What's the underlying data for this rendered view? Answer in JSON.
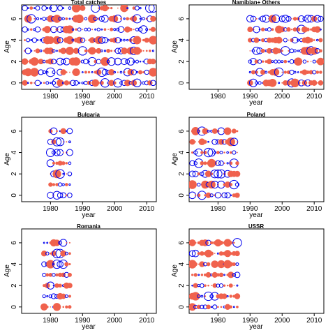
{
  "colors": {
    "positive": "#f0624d",
    "negative": "#0000ee",
    "axis": "#000000"
  },
  "chart_data": [
    {
      "type": "scatter",
      "title": "Total catches",
      "xlabel": "year",
      "ylabel": "Age",
      "xlim": [
        1971,
        2013
      ],
      "ylim": [
        -0.6,
        7.3
      ],
      "xticks": [
        1980,
        1990,
        2000,
        2010
      ],
      "yticks": [
        0,
        2,
        4,
        6
      ],
      "encoding": "bubble size = residual magnitude; filled red = positive, open blue = negative",
      "years": [
        1972,
        2012
      ],
      "ages": [
        0,
        1,
        2,
        3,
        4,
        5,
        6,
        7
      ],
      "year_gaps": []
    },
    {
      "type": "scatter",
      "title": "Namibian+ Others",
      "xlabel": "year",
      "ylabel": "Age",
      "xlim": [
        1971,
        2013
      ],
      "ylim": [
        -0.6,
        7.3
      ],
      "xticks": [
        1980,
        1990,
        2000,
        2010
      ],
      "yticks": [
        0,
        2,
        4,
        6
      ],
      "encoding": "bubble size = residual magnitude; filled red = positive, open blue = negative",
      "years": [
        1990,
        2012
      ],
      "ages": [
        0,
        1,
        2,
        3,
        4,
        5,
        6
      ],
      "year_gaps": []
    },
    {
      "type": "scatter",
      "title": "Bulgaria",
      "xlabel": "year",
      "ylabel": "Age",
      "xlim": [
        1971,
        2013
      ],
      "ylim": [
        -0.6,
        7.3
      ],
      "xticks": [
        1980,
        1990,
        2000,
        2010
      ],
      "yticks": [
        0,
        2,
        4,
        6
      ],
      "encoding": "bubble size = residual magnitude; filled red = positive, open blue = negative",
      "years": [
        1980,
        1986
      ],
      "ages": [
        0,
        1,
        2,
        3,
        4,
        5,
        6
      ],
      "year_gaps": []
    },
    {
      "type": "scatter",
      "title": "Poland",
      "xlabel": "year",
      "ylabel": "Age",
      "xlim": [
        1971,
        2013
      ],
      "ylim": [
        -0.6,
        7.3
      ],
      "xticks": [
        1980,
        1990,
        2000,
        2010
      ],
      "yticks": [
        0,
        2,
        4,
        6
      ],
      "encoding": "bubble size = residual magnitude; filled red = positive, open blue = negative",
      "years": [
        1972,
        1986
      ],
      "ages": [
        0,
        1,
        2,
        3,
        4,
        5,
        6
      ],
      "year_gaps": []
    },
    {
      "type": "scatter",
      "title": "Romania",
      "xlabel": "year",
      "ylabel": "Age",
      "xlim": [
        1971,
        2013
      ],
      "ylim": [
        -0.6,
        7.3
      ],
      "xticks": [
        1980,
        1990,
        2000,
        2010
      ],
      "yticks": [
        0,
        2,
        4,
        6
      ],
      "encoding": "bubble size = residual magnitude; filled red = positive, open blue = negative",
      "years": [
        1978,
        1986
      ],
      "ages": [
        0,
        1,
        2,
        3,
        4,
        5,
        6
      ],
      "year_gaps": []
    },
    {
      "type": "scatter",
      "title": "USSR",
      "xlabel": "year",
      "ylabel": "Age",
      "xlim": [
        1971,
        2013
      ],
      "ylim": [
        -0.6,
        7.3
      ],
      "xticks": [
        1980,
        1990,
        2000,
        2010
      ],
      "yticks": [
        0,
        2,
        4,
        6
      ],
      "encoding": "bubble size = residual magnitude; filled red = positive, open blue = negative",
      "years": [
        1972,
        1986
      ],
      "ages": [
        0,
        1,
        2,
        3,
        4,
        5,
        6
      ],
      "year_gaps": []
    }
  ]
}
